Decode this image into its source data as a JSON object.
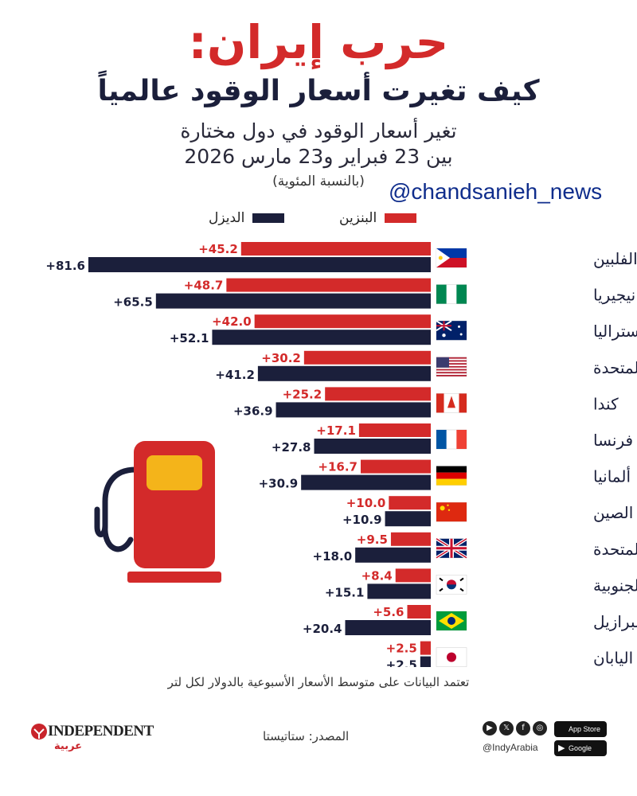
{
  "header": {
    "title": "حرب إيران:",
    "subtitle": "كيف تغيرت أسعار الوقود عالمياً",
    "description_line1": "تغير أسعار الوقود في دول مختارة",
    "description_line2": "بين 23 فبراير و23 مارس 2026",
    "unit_note": "(بالنسبة المئوية)"
  },
  "watermark": "@chandsanieh_news",
  "legend": {
    "petrol": "البنزين",
    "diesel": "الديزل"
  },
  "colors": {
    "petrol": "#d32a2a",
    "diesel": "#1b1f3b",
    "accent": "#d32a2a"
  },
  "chart_data": {
    "type": "bar",
    "orientation": "horizontal",
    "categories": [
      "الفلبين",
      "نيجيريا",
      "أستراليا",
      "الولايات المتحدة",
      "كندا",
      "فرنسا",
      "ألمانيا",
      "الصين",
      "المملكة المتحدة",
      "كوريا الجنوبية",
      "البرازيل",
      "اليابان"
    ],
    "flags": [
      "philippines",
      "nigeria",
      "australia",
      "usa",
      "canada",
      "france",
      "germany",
      "china",
      "uk",
      "south-korea",
      "brazil",
      "japan"
    ],
    "series": [
      {
        "name": "البنزين",
        "values": [
          45.2,
          48.7,
          42.0,
          30.2,
          25.2,
          17.1,
          16.7,
          10.0,
          9.5,
          8.4,
          5.6,
          2.5
        ],
        "labels": [
          "+45.2",
          "+48.7",
          "+42.0",
          "+30.2",
          "+25.2",
          "+17.1",
          "+16.7",
          "+10.0",
          "+9.5",
          "+8.4",
          "+5.6",
          "+2.5"
        ]
      },
      {
        "name": "الديزل",
        "values": [
          81.6,
          65.5,
          52.1,
          41.2,
          36.9,
          27.8,
          30.9,
          10.9,
          18.0,
          15.1,
          20.4,
          2.5
        ],
        "labels": [
          "+81.6",
          "+65.5",
          "+52.1",
          "+41.2",
          "+36.9",
          "+27.8",
          "+30.9",
          "+10.9",
          "+18.0",
          "+15.1",
          "+20.4",
          "+2.5"
        ]
      }
    ],
    "xlim": [
      0,
      85
    ],
    "grid": false,
    "legend_position": "top"
  },
  "footnote": "تعتمد البيانات على متوسط الأسعار الأسبوعية بالدولار لكل لتر",
  "source": "المصدر: ستاتيستا",
  "brand": {
    "name": "INDEPENDENT",
    "arabic": "عربية"
  },
  "social": {
    "handle": "@IndyArabia",
    "app_store": "App Store",
    "google_play": "Google Play",
    "icons": [
      "instagram-icon",
      "facebook-icon",
      "x-icon",
      "youtube-icon"
    ]
  }
}
